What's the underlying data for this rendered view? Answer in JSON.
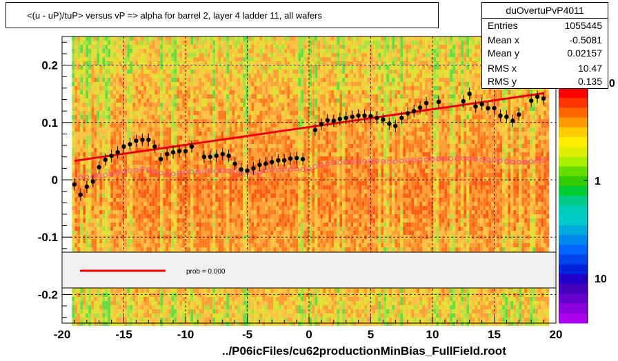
{
  "title": "<(u - uP)/tuP>  versus   vP =>  alpha for barrel 2, layer 4 ladder 11, all wafers",
  "footer": "../P06icFiles/cu62productionMinBias_FullField.root",
  "stats": {
    "name": "duOvertuPvP4011",
    "rows": [
      {
        "label": "Entries",
        "value": "1055445"
      },
      {
        "label": "Mean x",
        "value": "-0.5081"
      },
      {
        "label": "Mean y",
        "value": "0.02157"
      },
      {
        "label": "RMS x",
        "value": "10.47"
      },
      {
        "label": "RMS y",
        "value": "0.135"
      }
    ]
  },
  "legend": {
    "prob_label": "prob = 0.000"
  },
  "colors": {
    "fit_line": "#ee0000",
    "markers": "#000000",
    "open_markers": "#ee44aa",
    "legend_bg": "#f0f0f0"
  },
  "chart_data": {
    "type": "scatter",
    "xlim": [
      -20,
      20
    ],
    "ylim": [
      -0.25,
      0.25
    ],
    "x_ticks": [
      -20,
      -15,
      -10,
      -5,
      0,
      5,
      10,
      15,
      20
    ],
    "x_tick_labels": [
      "-20",
      "-15",
      "-10",
      "-5",
      "0",
      "5",
      "10",
      "15",
      "20"
    ],
    "y_ticks": [
      -0.2,
      -0.1,
      0,
      0.1,
      0.2
    ],
    "y_tick_labels": [
      "-0.2",
      "-0.1",
      "0",
      "0.1",
      "0.2"
    ],
    "grid": true,
    "background": "2D histogram heatmap",
    "colorbar": {
      "scale": "log",
      "labels": [
        "1",
        "10"
      ]
    },
    "series": [
      {
        "marker": "filled-circle",
        "x": [
          -19.0,
          -18.5,
          -18.0,
          -17.5,
          -17.0,
          -16.5,
          -16.0,
          -15.5,
          -15.0,
          -14.5,
          -14.0,
          -13.5,
          -13.0,
          -12.5,
          -12.0,
          -11.5,
          -11.0,
          -10.5,
          -10.0,
          -9.5,
          -9.0,
          -8.5,
          -8.0,
          -7.5,
          -7.0,
          -6.5,
          -6.0,
          -5.5,
          -5.0,
          -4.5,
          -4.0,
          -3.5,
          -3.0,
          -2.5,
          -2.0,
          -1.5,
          -1.0,
          -0.5,
          0.0,
          0.5,
          1.0,
          1.5,
          2.0,
          2.5,
          3.0,
          3.5,
          4.0,
          4.5,
          5.0,
          5.5,
          6.0,
          6.5,
          7.0,
          7.5,
          8.0,
          8.5,
          9.0,
          9.5,
          10.0,
          10.5,
          11.0,
          11.5,
          12.0,
          12.5,
          13.0,
          13.5,
          14.0,
          14.5,
          15.0,
          15.5,
          16.0,
          16.5,
          17.0,
          17.5,
          18.0,
          18.5,
          19.0
        ],
        "y": [
          -0.008,
          -0.026,
          -0.012,
          -0.003,
          0.022,
          0.035,
          0.042,
          0.048,
          0.058,
          0.062,
          0.068,
          0.07,
          0.07,
          0.058,
          0.036,
          0.045,
          0.048,
          0.05,
          0.05,
          0.058,
          null,
          0.04,
          0.04,
          0.042,
          0.045,
          0.042,
          0.028,
          0.018,
          0.016,
          0.02,
          0.026,
          0.028,
          0.031,
          0.034,
          0.034,
          0.037,
          0.038,
          0.036,
          null,
          0.087,
          0.097,
          0.104,
          0.103,
          0.106,
          0.108,
          0.11,
          0.112,
          0.112,
          0.111,
          0.108,
          0.105,
          0.098,
          0.094,
          0.108,
          0.116,
          0.12,
          0.126,
          0.134,
          null,
          0.136,
          null,
          null,
          null,
          0.137,
          0.15,
          0.128,
          0.132,
          0.125,
          0.125,
          0.112,
          0.11,
          0.103,
          0.114,
          null,
          0.138,
          0.145,
          0.142
        ]
      },
      {
        "marker": "open-circle",
        "x": [
          -18.5,
          -18.0,
          -17.5,
          -17.0,
          -16.5,
          -16.0,
          -15.5,
          -15.0,
          -14.5,
          -14.0,
          -13.5,
          -13.0,
          -12.5,
          -12.0,
          -11.5,
          -11.0,
          -10.5,
          -10.0,
          -9.5,
          -9.0,
          -8.5,
          -8.0,
          -7.5,
          -7.0,
          -6.5,
          -6.0,
          -5.5,
          -5.0,
          -4.5,
          -4.0,
          -3.5,
          -3.0,
          -2.5,
          -2.0,
          -1.5,
          -1.0,
          -0.5,
          0.0,
          0.5,
          1.0,
          1.5,
          2.0,
          2.5,
          3.0,
          3.5,
          4.0,
          4.5,
          5.0,
          5.5,
          6.0,
          6.5,
          7.0,
          7.5,
          8.0,
          8.5,
          9.0,
          9.5,
          10.0,
          10.5,
          11.0,
          11.5,
          12.0,
          12.5,
          13.0,
          13.5,
          14.0,
          14.5,
          15.0,
          15.5,
          16.0,
          16.5,
          17.0,
          17.5,
          18.0,
          18.5,
          19.0
        ],
        "y": [
          0.004,
          0.005,
          0.006,
          0.007,
          0.008,
          0.01,
          0.012,
          0.014,
          0.016,
          0.017,
          0.019,
          0.018,
          0.014,
          0.012,
          0.01,
          0.01,
          0.012,
          0.013,
          0.014,
          0.014,
          0.015,
          0.016,
          0.015,
          0.016,
          0.015,
          0.015,
          0.014,
          0.013,
          0.012,
          0.013,
          0.016,
          0.017,
          0.017,
          0.018,
          0.018,
          0.019,
          0.018,
          0.019,
          0.023,
          0.026,
          0.028,
          0.03,
          0.03,
          0.031,
          0.031,
          0.032,
          0.032,
          0.033,
          0.033,
          0.032,
          0.031,
          0.032,
          0.033,
          0.034,
          0.034,
          0.035,
          0.035,
          0.036,
          0.036,
          0.036,
          0.037,
          0.037,
          0.037,
          0.036,
          0.036,
          0.035,
          0.035,
          0.034,
          0.033,
          0.032,
          0.031,
          0.031,
          0.031,
          0.032,
          0.033,
          0.034
        ]
      }
    ],
    "fit_line": {
      "x": [
        -19.0,
        19.0
      ],
      "y": [
        0.033,
        0.151
      ]
    }
  }
}
